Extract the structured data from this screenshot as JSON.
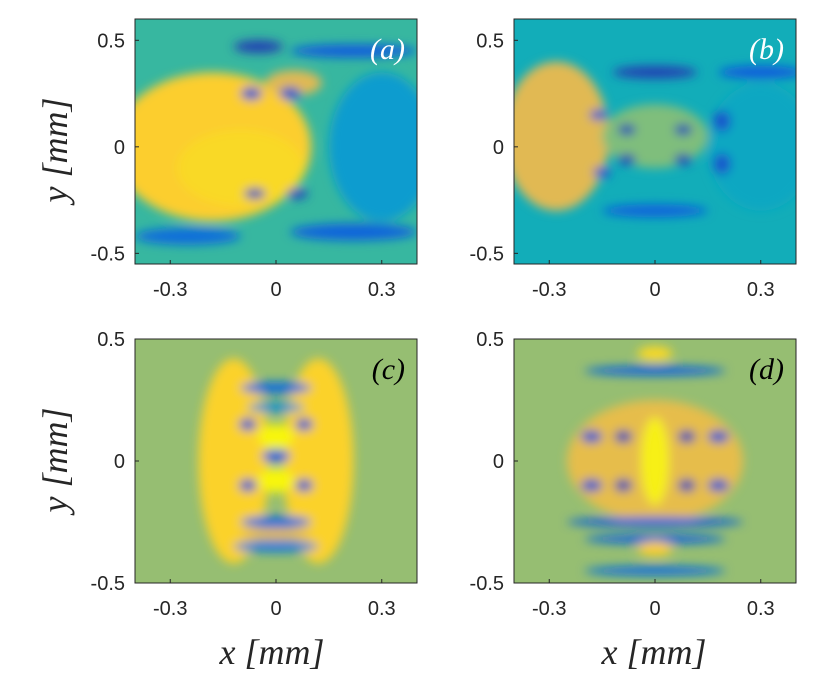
{
  "chart_data": [
    {
      "type": "heatmap",
      "panel_label": "(a)",
      "panel_label_color": "#ffffff",
      "xlabel": "",
      "ylabel": "y [mm]",
      "xlim": [
        -0.4,
        0.4
      ],
      "ylim": [
        -0.55,
        0.6
      ],
      "xticks": [
        "-0.3",
        "0",
        "0.3"
      ],
      "yticks": [
        "0.5",
        "0",
        "-0.5"
      ],
      "colormap": "parula",
      "base_level": 0.45,
      "features": [
        {
          "x": -0.18,
          "y": 0.0,
          "rx": 0.28,
          "ry": 0.35,
          "level": 0.8
        },
        {
          "x": -0.1,
          "y": -0.1,
          "rx": 0.18,
          "ry": 0.18,
          "level": 0.85
        },
        {
          "x": 0.05,
          "y": 0.3,
          "rx": 0.08,
          "ry": 0.06,
          "level": 0.7
        },
        {
          "x": 0.3,
          "y": 0.0,
          "rx": 0.15,
          "ry": 0.35,
          "level": 0.3
        },
        {
          "x": -0.05,
          "y": 0.47,
          "rx": 0.07,
          "ry": 0.03,
          "level": 0.05
        },
        {
          "x": -0.07,
          "y": 0.25,
          "rx": 0.03,
          "ry": 0.03,
          "level": 0.08
        },
        {
          "x": 0.04,
          "y": 0.25,
          "rx": 0.03,
          "ry": 0.03,
          "level": 0.08
        },
        {
          "x": -0.06,
          "y": -0.22,
          "rx": 0.03,
          "ry": 0.025,
          "level": 0.06
        },
        {
          "x": 0.06,
          "y": -0.22,
          "rx": 0.03,
          "ry": 0.025,
          "level": 0.06
        },
        {
          "x": 0.22,
          "y": 0.45,
          "rx": 0.18,
          "ry": 0.03,
          "level": 0.1
        },
        {
          "x": 0.22,
          "y": -0.4,
          "rx": 0.18,
          "ry": 0.04,
          "level": 0.12
        },
        {
          "x": -0.25,
          "y": -0.42,
          "rx": 0.15,
          "ry": 0.04,
          "level": 0.15
        }
      ]
    },
    {
      "type": "heatmap",
      "panel_label": "(b)",
      "panel_label_color": "#ffffff",
      "xlabel": "",
      "ylabel": "",
      "xlim": [
        -0.4,
        0.4
      ],
      "ylim": [
        -0.55,
        0.6
      ],
      "xticks": [
        "-0.3",
        "0",
        "0.3"
      ],
      "yticks": [
        "0.5",
        "0",
        "-0.5"
      ],
      "colormap": "parula",
      "base_level": 0.38,
      "features": [
        {
          "x": -0.28,
          "y": 0.05,
          "rx": 0.15,
          "ry": 0.35,
          "level": 0.7
        },
        {
          "x": 0.0,
          "y": 0.05,
          "rx": 0.15,
          "ry": 0.15,
          "level": 0.55
        },
        {
          "x": 0.3,
          "y": 0.0,
          "rx": 0.15,
          "ry": 0.3,
          "level": 0.35
        },
        {
          "x": -0.08,
          "y": 0.08,
          "rx": 0.025,
          "ry": 0.025,
          "level": 0.05
        },
        {
          "x": 0.08,
          "y": 0.08,
          "rx": 0.025,
          "ry": 0.025,
          "level": 0.05
        },
        {
          "x": -0.08,
          "y": -0.06,
          "rx": 0.025,
          "ry": 0.025,
          "level": 0.05
        },
        {
          "x": 0.08,
          "y": -0.06,
          "rx": 0.025,
          "ry": 0.025,
          "level": 0.05
        },
        {
          "x": -0.16,
          "y": 0.15,
          "rx": 0.025,
          "ry": 0.025,
          "level": 0.08
        },
        {
          "x": -0.15,
          "y": -0.12,
          "rx": 0.025,
          "ry": 0.025,
          "level": 0.08
        },
        {
          "x": 0.19,
          "y": 0.12,
          "rx": 0.025,
          "ry": 0.05,
          "level": 0.08
        },
        {
          "x": 0.19,
          "y": -0.08,
          "rx": 0.025,
          "ry": 0.05,
          "level": 0.08
        },
        {
          "x": 0.0,
          "y": 0.35,
          "rx": 0.12,
          "ry": 0.03,
          "level": 0.05
        },
        {
          "x": 0.0,
          "y": -0.3,
          "rx": 0.15,
          "ry": 0.03,
          "level": 0.12
        },
        {
          "x": 0.3,
          "y": 0.35,
          "rx": 0.12,
          "ry": 0.03,
          "level": 0.1
        }
      ]
    },
    {
      "type": "heatmap",
      "panel_label": "(c)",
      "panel_label_color": "#000000",
      "xlabel": "x [mm]",
      "ylabel": "y [mm]",
      "xlim": [
        -0.4,
        0.4
      ],
      "ylim": [
        -0.5,
        0.5
      ],
      "xticks": [
        "-0.3",
        "0",
        "0.3"
      ],
      "yticks": [
        "0.5",
        "0",
        "-0.5"
      ],
      "colormap": "parula",
      "base_level": 0.58,
      "features": [
        {
          "x": -0.12,
          "y": 0.0,
          "rx": 0.1,
          "ry": 0.42,
          "level": 0.82
        },
        {
          "x": 0.12,
          "y": 0.0,
          "rx": 0.1,
          "ry": 0.42,
          "level": 0.82
        },
        {
          "x": 0.0,
          "y": 0.1,
          "rx": 0.05,
          "ry": 0.05,
          "level": 0.98
        },
        {
          "x": 0.0,
          "y": -0.08,
          "rx": 0.05,
          "ry": 0.05,
          "level": 0.98
        },
        {
          "x": -0.08,
          "y": 0.15,
          "rx": 0.025,
          "ry": 0.025,
          "level": 0.08
        },
        {
          "x": 0.08,
          "y": 0.15,
          "rx": 0.025,
          "ry": 0.025,
          "level": 0.08
        },
        {
          "x": -0.08,
          "y": -0.1,
          "rx": 0.025,
          "ry": 0.025,
          "level": 0.08
        },
        {
          "x": 0.08,
          "y": -0.1,
          "rx": 0.025,
          "ry": 0.025,
          "level": 0.08
        },
        {
          "x": 0.0,
          "y": 0.02,
          "rx": 0.04,
          "ry": 0.025,
          "level": 0.1
        },
        {
          "x": 0.0,
          "y": 0.3,
          "rx": 0.1,
          "ry": 0.025,
          "level": 0.15
        },
        {
          "x": 0.0,
          "y": 0.22,
          "rx": 0.08,
          "ry": 0.02,
          "level": 0.25
        },
        {
          "x": 0.0,
          "y": -0.25,
          "rx": 0.1,
          "ry": 0.025,
          "level": 0.15
        },
        {
          "x": 0.0,
          "y": -0.35,
          "rx": 0.12,
          "ry": 0.025,
          "level": 0.2
        },
        {
          "x": 0.0,
          "y": -0.3,
          "rx": 0.1,
          "ry": 0.025,
          "level": 0.7
        }
      ]
    },
    {
      "type": "heatmap",
      "panel_label": "(d)",
      "panel_label_color": "#000000",
      "xlabel": "x [mm]",
      "ylabel": "",
      "xlim": [
        -0.4,
        0.4
      ],
      "ylim": [
        -0.5,
        0.5
      ],
      "xticks": [
        "-0.3",
        "0",
        "0.3"
      ],
      "yticks": [
        "0.5",
        "0",
        "-0.5"
      ],
      "colormap": "parula",
      "base_level": 0.58,
      "features": [
        {
          "x": 0.0,
          "y": 0.0,
          "rx": 0.25,
          "ry": 0.25,
          "level": 0.72
        },
        {
          "x": 0.0,
          "y": 0.0,
          "rx": 0.04,
          "ry": 0.18,
          "level": 0.95
        },
        {
          "x": -0.18,
          "y": 0.1,
          "rx": 0.03,
          "ry": 0.025,
          "level": 0.08
        },
        {
          "x": -0.09,
          "y": 0.1,
          "rx": 0.025,
          "ry": 0.025,
          "level": 0.05
        },
        {
          "x": 0.09,
          "y": 0.1,
          "rx": 0.025,
          "ry": 0.025,
          "level": 0.05
        },
        {
          "x": 0.18,
          "y": 0.1,
          "rx": 0.03,
          "ry": 0.025,
          "level": 0.08
        },
        {
          "x": -0.18,
          "y": -0.1,
          "rx": 0.03,
          "ry": 0.025,
          "level": 0.08
        },
        {
          "x": -0.09,
          "y": -0.1,
          "rx": 0.025,
          "ry": 0.025,
          "level": 0.05
        },
        {
          "x": 0.09,
          "y": -0.1,
          "rx": 0.025,
          "ry": 0.025,
          "level": 0.05
        },
        {
          "x": 0.18,
          "y": -0.1,
          "rx": 0.03,
          "ry": 0.025,
          "level": 0.08
        },
        {
          "x": 0.0,
          "y": 0.37,
          "rx": 0.2,
          "ry": 0.02,
          "level": 0.12
        },
        {
          "x": 0.0,
          "y": 0.44,
          "rx": 0.05,
          "ry": 0.03,
          "level": 0.85
        },
        {
          "x": 0.0,
          "y": -0.25,
          "rx": 0.25,
          "ry": 0.02,
          "level": 0.1
        },
        {
          "x": 0.0,
          "y": -0.32,
          "rx": 0.2,
          "ry": 0.02,
          "level": 0.12
        },
        {
          "x": 0.0,
          "y": -0.36,
          "rx": 0.05,
          "ry": 0.03,
          "level": 0.8
        },
        {
          "x": 0.0,
          "y": -0.45,
          "rx": 0.2,
          "ry": 0.02,
          "level": 0.15
        }
      ]
    }
  ]
}
